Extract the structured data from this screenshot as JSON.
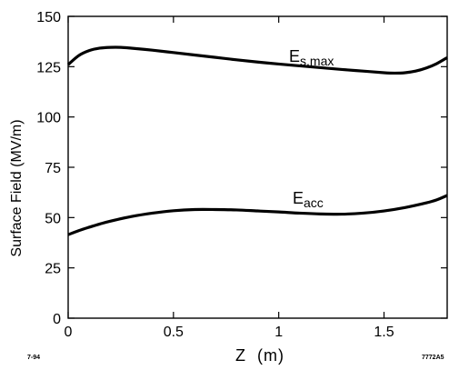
{
  "chart_data": {
    "type": "line",
    "title": "",
    "xlabel": "Z  (m)",
    "ylabel": "Surface Field  (MV/m)",
    "xlim": [
      0,
      1.8
    ],
    "ylim": [
      0,
      150
    ],
    "x_ticks": [
      0,
      0.5,
      1,
      1.5
    ],
    "x_tick_labels": [
      "0",
      "0.5",
      "1",
      "1.5"
    ],
    "y_ticks": [
      0,
      25,
      50,
      75,
      100,
      125,
      150
    ],
    "y_tick_labels": [
      "0",
      "25",
      "50",
      "75",
      "100",
      "125",
      "150"
    ],
    "grid": false,
    "legend": "none",
    "series": [
      {
        "name": "Es,max",
        "label_main": "E",
        "label_sub": "s,max",
        "x": [
          0,
          0.05,
          0.1,
          0.15,
          0.2,
          0.25,
          0.3,
          0.4,
          0.5,
          0.6,
          0.7,
          0.8,
          0.9,
          1.0,
          1.1,
          1.2,
          1.3,
          1.4,
          1.5,
          1.55,
          1.6,
          1.65,
          1.7,
          1.75,
          1.8
        ],
        "y": [
          126,
          130.5,
          133,
          134.2,
          134.6,
          134.6,
          134.2,
          133.2,
          132,
          130.8,
          129.6,
          128.4,
          127.3,
          126.3,
          125.4,
          124.5,
          123.6,
          122.8,
          122,
          121.8,
          122,
          122.8,
          124.3,
          126.5,
          129.5
        ]
      },
      {
        "name": "Eacc",
        "label_main": "E",
        "label_sub": "acc",
        "x": [
          0,
          0.05,
          0.1,
          0.15,
          0.2,
          0.3,
          0.4,
          0.5,
          0.6,
          0.7,
          0.8,
          0.9,
          1.0,
          1.1,
          1.2,
          1.3,
          1.4,
          1.5,
          1.6,
          1.7,
          1.75,
          1.8
        ],
        "y": [
          41.5,
          43.5,
          45.2,
          46.8,
          48.2,
          50.5,
          52.2,
          53.4,
          54,
          54,
          53.8,
          53.3,
          52.8,
          52.2,
          51.8,
          51.7,
          52.2,
          53.3,
          55,
          57.3,
          58.8,
          61
        ]
      }
    ]
  },
  "corner_notes": {
    "left": "7-94",
    "right": "7772A5"
  }
}
